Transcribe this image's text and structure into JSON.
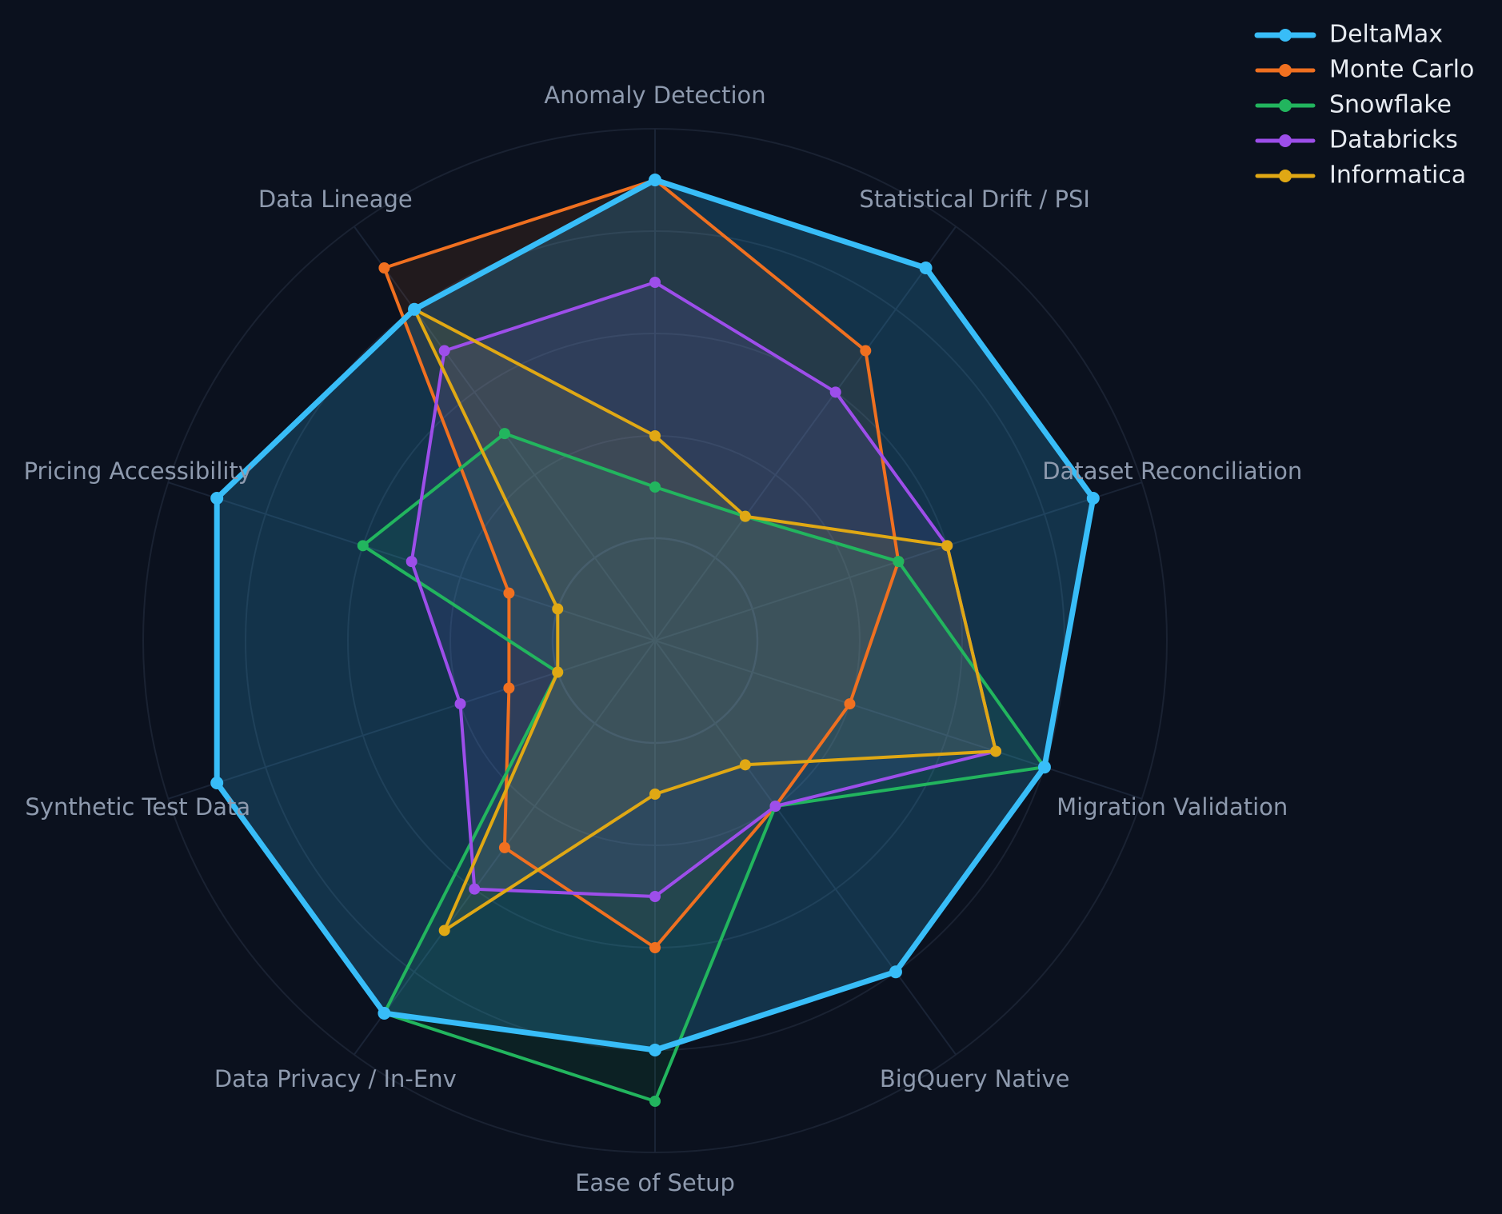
{
  "chart_data": {
    "type": "radar",
    "title": "",
    "axes": [
      "Anomaly Detection",
      "Statistical Drift / PSI",
      "Dataset Reconciliation",
      "Migration Validation",
      "BigQuery Native",
      "Ease of Setup",
      "Data Privacy / In-Env",
      "Synthetic Test Data",
      "Pricing Accessibility",
      "Data Lineage"
    ],
    "rlim": [
      0,
      10
    ],
    "grid_rings": [
      2,
      4,
      6,
      8,
      10
    ],
    "grid": true,
    "legend_position": "top-right",
    "series": [
      {
        "name": "DeltaMax",
        "color": "#38bdf8",
        "values": [
          9,
          9,
          9,
          8,
          8,
          8,
          9,
          9,
          9,
          8
        ]
      },
      {
        "name": "Monte Carlo",
        "color": "#f07020",
        "values": [
          9,
          7,
          5,
          4,
          4,
          6,
          5,
          3,
          3,
          9
        ]
      },
      {
        "name": "Snowflake",
        "color": "#22b55e",
        "values": [
          3,
          3,
          5,
          8,
          4,
          9,
          9,
          2,
          6,
          5
        ]
      },
      {
        "name": "Databricks",
        "color": "#9d4eea",
        "values": [
          7,
          6,
          6,
          7,
          4,
          5,
          6,
          4,
          5,
          7
        ]
      },
      {
        "name": "Informatica",
        "color": "#e0a814",
        "values": [
          4,
          3,
          6,
          7,
          3,
          3,
          7,
          2,
          2,
          8
        ]
      }
    ]
  }
}
